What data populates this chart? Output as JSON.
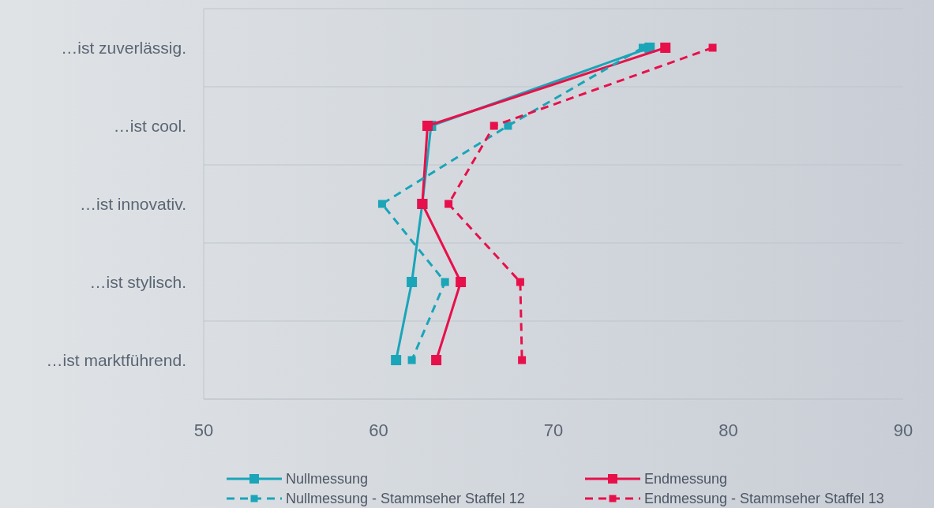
{
  "chart_data": {
    "type": "line",
    "orientation": "horizontal",
    "categories": [
      "…ist zuverlässig.",
      "…ist cool.",
      "…ist innovativ.",
      "…ist stylisch.",
      "…ist marktführend."
    ],
    "xlim": [
      50,
      90
    ],
    "xticks": [
      50,
      60,
      70,
      80,
      90
    ],
    "grid": "y",
    "legend": "bottom",
    "marker": "square",
    "series": [
      {
        "name": "Nullmessung",
        "color": "#1aa5b8",
        "line_style": "solid",
        "values": [
          75.5,
          63.0,
          62.5,
          61.9,
          61.0
        ]
      },
      {
        "name": "Endmessung",
        "color": "#e8104a",
        "line_style": "solid",
        "values": [
          76.4,
          62.8,
          62.5,
          64.7,
          63.3
        ]
      },
      {
        "name": "Nullmessung - Stammseher Staffel 12",
        "color": "#1aa5b8",
        "line_style": "dashed",
        "values": [
          75.1,
          67.4,
          60.2,
          63.8,
          61.9
        ]
      },
      {
        "name": "Endmessung - Stammseher Staffel 13",
        "color": "#e8104a",
        "line_style": "dashed",
        "values": [
          79.1,
          66.6,
          64.0,
          68.1,
          68.2
        ]
      }
    ]
  }
}
